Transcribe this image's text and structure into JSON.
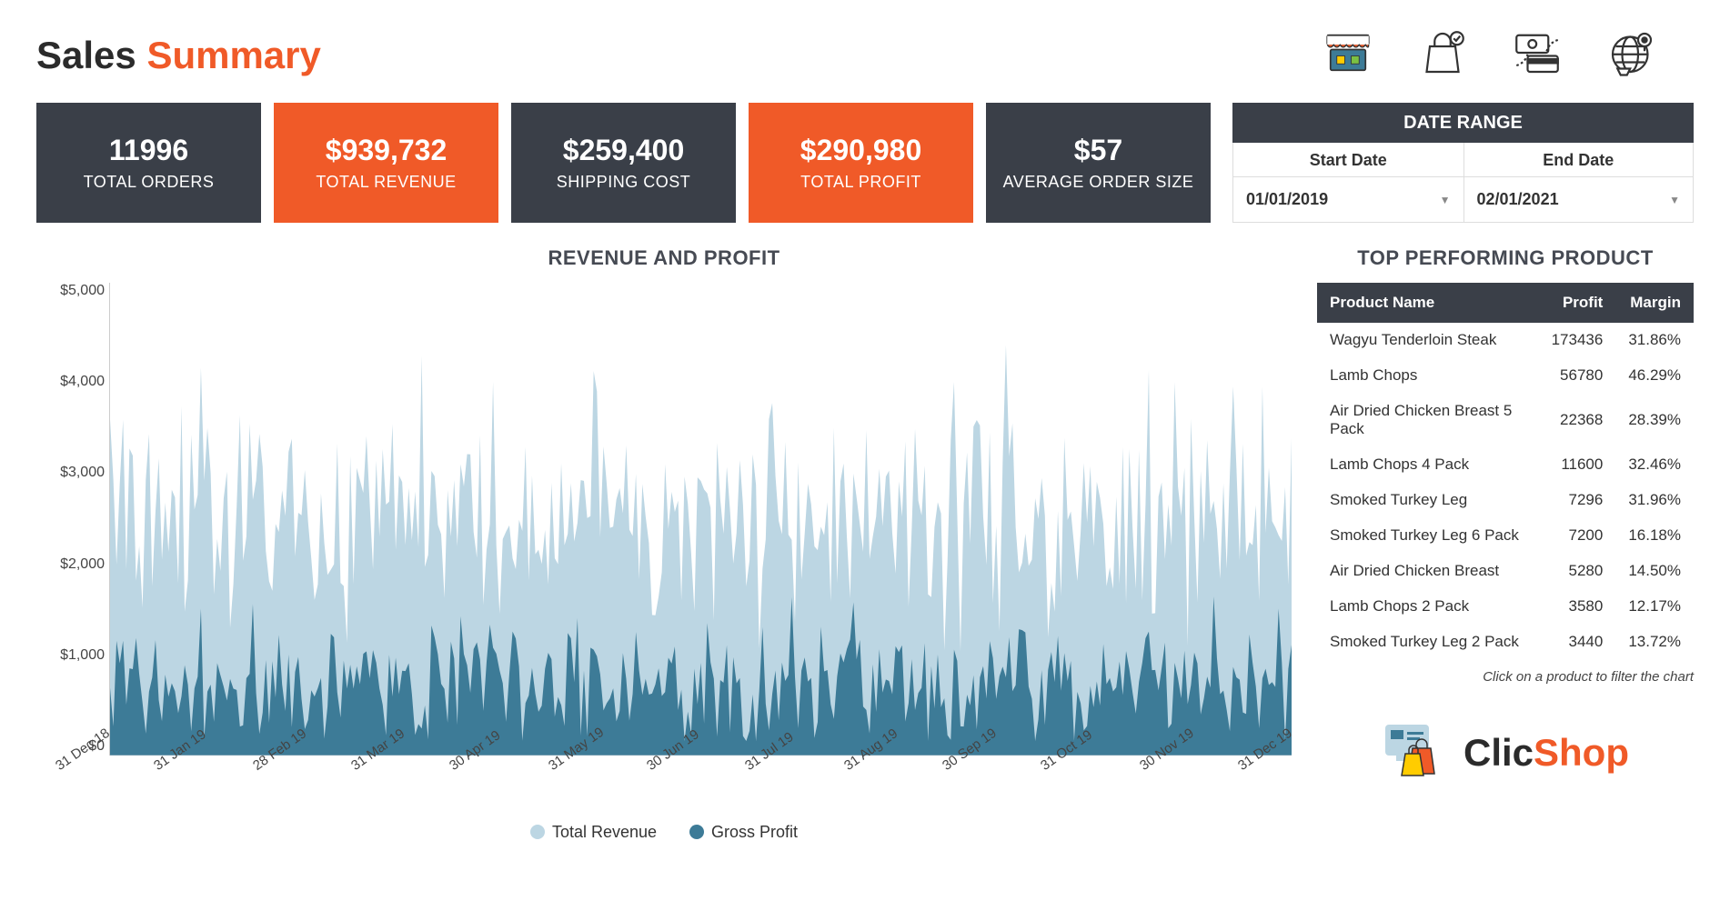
{
  "title": {
    "pre": "Sales ",
    "accent": "Summary"
  },
  "colors": {
    "card_dark": "#3a3f48",
    "card_orange": "#f05a28",
    "series_revenue": "#bcd6e3",
    "series_profit": "#3d7b97",
    "text_dark": "#2b2b2b"
  },
  "kpi": [
    {
      "value": "11996",
      "label": "TOTAL ORDERS",
      "style": "dark"
    },
    {
      "value": "$939,732",
      "label": "TOTAL REVENUE",
      "style": "orange"
    },
    {
      "value": "$259,400",
      "label": "SHIPPING COST",
      "style": "dark"
    },
    {
      "value": "$290,980",
      "label": "TOTAL PROFIT",
      "style": "orange"
    },
    {
      "value": "$57",
      "label": "AVERAGE ORDER SIZE",
      "style": "dark"
    }
  ],
  "date_range": {
    "title": "DATE RANGE",
    "start_label": "Start Date",
    "end_label": "End Date",
    "start_value": "01/01/2019",
    "end_value": "02/01/2021"
  },
  "chart": {
    "title": "REVENUE AND PROFIT",
    "type": "area",
    "y_max": 5000,
    "y_ticks": [
      "$5,000",
      "$4,000",
      "$3,000",
      "$2,000",
      "$1,000",
      "$0"
    ],
    "x_ticks": [
      "31 Dec 18",
      "31 Jan 19",
      "28 Feb 19",
      "31 Mar 19",
      "30 Apr 19",
      "31 May 19",
      "30 Jun 19",
      "31 Jul 19",
      "31 Aug 19",
      "30 Sep 19",
      "31 Oct 19",
      "30 Nov 19",
      "31 Dec 19"
    ],
    "legend": [
      {
        "label": "Total Revenue",
        "color": "#bcd6e3"
      },
      {
        "label": "Gross Profit",
        "color": "#3d7b97"
      }
    ],
    "n_points": 365,
    "revenue_seed": 12345,
    "profit_seed": 67890,
    "revenue_base": 2400,
    "revenue_spread": 1600,
    "profit_base": 750,
    "profit_spread": 900,
    "revenue_spikes": [
      {
        "i": 0,
        "v": 3550
      },
      {
        "i": 12,
        "v": 3400
      },
      {
        "i": 28,
        "v": 4100
      },
      {
        "i": 40,
        "v": 3600
      },
      {
        "i": 118,
        "v": 3950
      },
      {
        "i": 150,
        "v": 3850
      },
      {
        "i": 260,
        "v": 3950
      },
      {
        "i": 320,
        "v": 4080
      },
      {
        "i": 355,
        "v": 3900
      },
      {
        "i": 328,
        "v": 3950
      }
    ],
    "profit_spikes": [
      {
        "i": 2,
        "v": 1650
      },
      {
        "i": 28,
        "v": 1550
      },
      {
        "i": 44,
        "v": 1600
      },
      {
        "i": 120,
        "v": 1500
      },
      {
        "i": 210,
        "v": 1670
      },
      {
        "i": 290,
        "v": 1600
      },
      {
        "i": 340,
        "v": 1680
      },
      {
        "i": 360,
        "v": 1550
      }
    ]
  },
  "top_products": {
    "title": "TOP PERFORMING PRODUCT",
    "columns": [
      "Product Name",
      "Profit",
      "Margin"
    ],
    "hint": "Click on a product to filter the chart",
    "rows": [
      {
        "name": "Wagyu Tenderloin Steak",
        "profit": "173436",
        "margin": "31.86%"
      },
      {
        "name": "Lamb Chops",
        "profit": "56780",
        "margin": "46.29%"
      },
      {
        "name": "Air Dried Chicken Breast 5 Pack",
        "profit": "22368",
        "margin": "28.39%"
      },
      {
        "name": "Lamb Chops 4 Pack",
        "profit": "11600",
        "margin": "32.46%"
      },
      {
        "name": "Smoked Turkey Leg",
        "profit": "7296",
        "margin": "31.96%"
      },
      {
        "name": "Smoked Turkey Leg 6 Pack",
        "profit": "7200",
        "margin": "16.18%"
      },
      {
        "name": "Air Dried Chicken Breast",
        "profit": "5280",
        "margin": "14.50%"
      },
      {
        "name": "Lamb Chops 2 Pack",
        "profit": "3580",
        "margin": "12.17%"
      },
      {
        "name": "Smoked Turkey Leg 2 Pack",
        "profit": "3440",
        "margin": "13.72%"
      }
    ]
  },
  "brand": {
    "pre": "Clic",
    "accent": "Shop"
  }
}
